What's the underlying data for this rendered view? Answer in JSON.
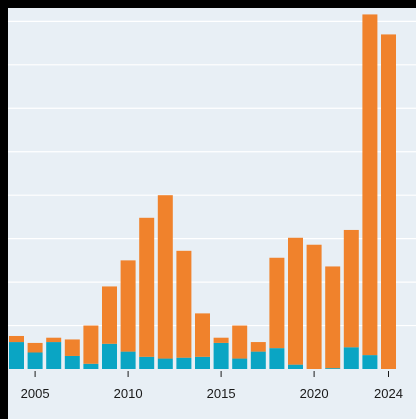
{
  "chart_data": {
    "type": "bar",
    "stacked": true,
    "categories": [
      "2004",
      "2005",
      "2006",
      "2007",
      "2008",
      "2009",
      "2010",
      "2011",
      "2012",
      "2013",
      "2014",
      "2015",
      "2016",
      "2017",
      "2018",
      "2019",
      "2020",
      "2021",
      "2022",
      "2023",
      "2024"
    ],
    "series": [
      {
        "color": "#0aa5c4",
        "values": [
          31,
          19,
          31,
          15,
          6,
          29,
          20,
          14,
          12,
          13,
          14,
          30,
          12,
          20,
          24,
          5,
          0,
          1,
          25,
          16,
          0
        ]
      },
      {
        "color": "#f0822c",
        "values": [
          7,
          11,
          5,
          19,
          44,
          66,
          105,
          160,
          188,
          123,
          50,
          6,
          38,
          11,
          104,
          146,
          143,
          117,
          135,
          392,
          385
        ]
      }
    ],
    "xticks": [
      "2005",
      "2010",
      "2015",
      "2020",
      "2024"
    ],
    "ylim": [
      0,
      420
    ],
    "ygrid": [
      0,
      50,
      100,
      150,
      200,
      250,
      300,
      350,
      400
    ],
    "grid": true,
    "legend": "none",
    "title": "",
    "xlabel": "",
    "ylabel": ""
  }
}
